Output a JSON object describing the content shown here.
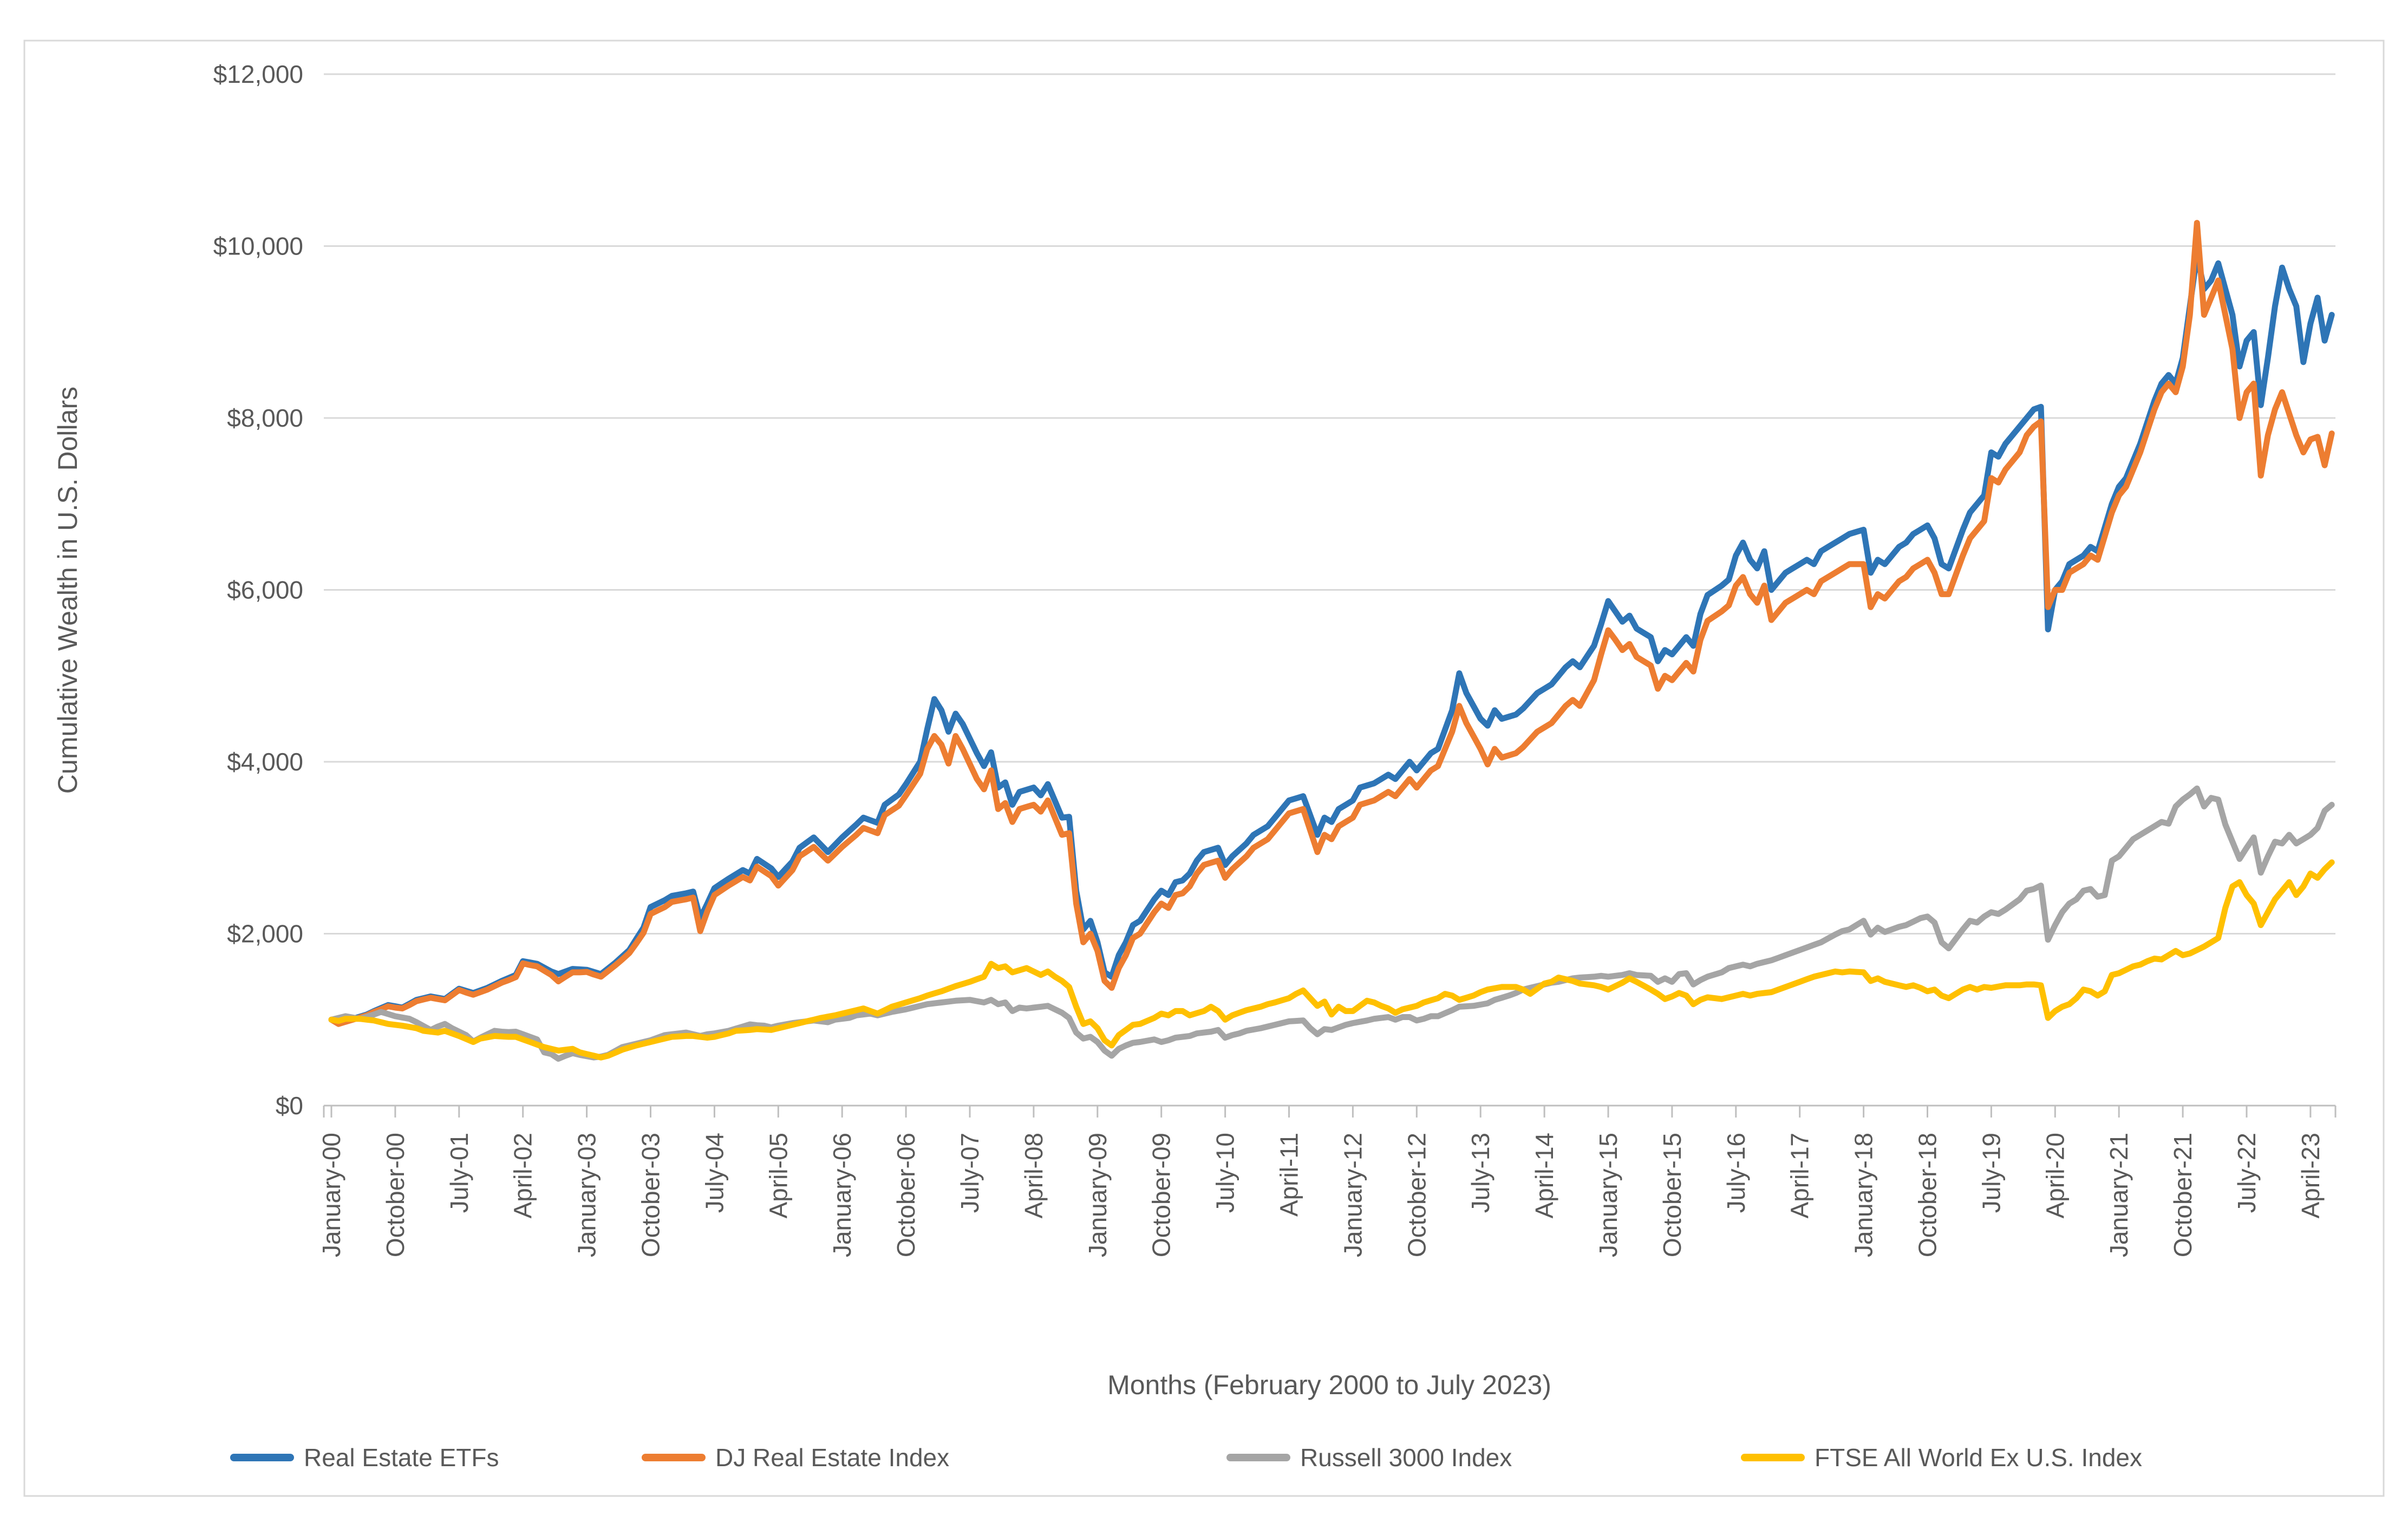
{
  "chart_data": {
    "type": "line",
    "title": "",
    "xlabel": "Months (February 2000 to July 2023)",
    "ylabel": "Cumulative Wealth in U.S. Dollars",
    "ylim": [
      0,
      12000
    ],
    "grid": "horizontal",
    "legend_position": "bottom",
    "y_tick_labels": [
      "$0",
      "$2,000",
      "$4,000",
      "$6,000",
      "$8,000",
      "$10,000",
      "$12,000"
    ],
    "y_tick_values": [
      0,
      2000,
      4000,
      6000,
      8000,
      10000,
      12000
    ],
    "x_tick_interval_months": 9,
    "x_tick_labels": [
      "January-00",
      "October-00",
      "July-01",
      "April-02",
      "January-03",
      "October-03",
      "July-04",
      "April-05",
      "January-06",
      "October-06",
      "July-07",
      "April-08",
      "January-09",
      "October-09",
      "July-10",
      "April-11",
      "January-12",
      "October-12",
      "July-13",
      "April-14",
      "January-15",
      "October-15",
      "July-16",
      "April-17",
      "January-18",
      "October-18",
      "July-19",
      "April-20",
      "January-21",
      "October-21",
      "July-22",
      "April-23"
    ],
    "x_start": "January-2000",
    "x_end": "July-2023",
    "series": [
      {
        "name": "Real Estate ETFs",
        "color": "#2E75B6",
        "values": [
          1000,
          955,
          985,
          1010,
          1035,
          1060,
          1100,
          1135,
          1170,
          1155,
          1140,
          1185,
          1230,
          1250,
          1270,
          1255,
          1240,
          1300,
          1360,
          1335,
          1310,
          1340,
          1370,
          1410,
          1450,
          1485,
          1520,
          1680,
          1665,
          1650,
          1605,
          1560,
          1530,
          1560,
          1590,
          1585,
          1580,
          1555,
          1530,
          1595,
          1660,
          1735,
          1810,
          1940,
          2070,
          2310,
          2350,
          2390,
          2440,
          2455,
          2470,
          2490,
          2180,
          2350,
          2530,
          2585,
          2640,
          2690,
          2740,
          2700,
          2870,
          2815,
          2760,
          2660,
          2750,
          2840,
          3000,
          3060,
          3120,
          3035,
          2950,
          3035,
          3120,
          3195,
          3270,
          3350,
          3320,
          3290,
          3500,
          3560,
          3620,
          3740,
          3870,
          4000,
          4380,
          4730,
          4600,
          4350,
          4560,
          4440,
          4270,
          4100,
          3950,
          4110,
          3700,
          3760,
          3500,
          3650,
          3675,
          3700,
          3610,
          3740,
          3545,
          3350,
          3360,
          2500,
          2050,
          2150,
          1900,
          1550,
          1500,
          1750,
          1900,
          2100,
          2150,
          2275,
          2400,
          2500,
          2450,
          2600,
          2620,
          2700,
          2850,
          2950,
          2975,
          3000,
          2800,
          2900,
          2975,
          3050,
          3150,
          3200,
          3250,
          3350,
          3450,
          3550,
          3575,
          3600,
          3375,
          3150,
          3350,
          3300,
          3450,
          3500,
          3550,
          3700,
          3725,
          3750,
          3800,
          3850,
          3800,
          3900,
          4000,
          3900,
          4000,
          4100,
          4150,
          4375,
          4600,
          5030,
          4800,
          4650,
          4500,
          4420,
          4600,
          4500,
          4525,
          4550,
          4620,
          4710,
          4800,
          4850,
          4900,
          5000,
          5100,
          5170,
          5100,
          5225,
          5350,
          5600,
          5870,
          5750,
          5630,
          5700,
          5550,
          5500,
          5450,
          5170,
          5300,
          5250,
          5350,
          5450,
          5350,
          5720,
          5940,
          5995,
          6050,
          6120,
          6400,
          6550,
          6350,
          6250,
          6450,
          6000,
          6100,
          6200,
          6250,
          6300,
          6350,
          6300,
          6450,
          6500,
          6550,
          6600,
          6650,
          6675,
          6700,
          6200,
          6350,
          6300,
          6400,
          6500,
          6550,
          6650,
          6700,
          6750,
          6600,
          6300,
          6250,
          6475,
          6700,
          6900,
          7000,
          7100,
          7600,
          7550,
          7700,
          7800,
          7900,
          8000,
          8100,
          8130,
          5540,
          6000,
          6100,
          6300,
          6350,
          6400,
          6500,
          6450,
          6725,
          7000,
          7200,
          7300,
          7500,
          7700,
          7950,
          8200,
          8400,
          8500,
          8400,
          8700,
          9300,
          9900,
          9500,
          9600,
          9800,
          9500,
          9200,
          8600,
          8900,
          9000,
          8150,
          8700,
          9300,
          9750,
          9500,
          9300,
          8650,
          9100,
          9400,
          8900,
          9200
        ]
      },
      {
        "name": "DJ Real Estate Index",
        "color": "#ED7D31",
        "values": [
          1000,
          950,
          975,
          1000,
          1025,
          1050,
          1090,
          1120,
          1155,
          1140,
          1130,
          1170,
          1215,
          1235,
          1255,
          1240,
          1225,
          1285,
          1345,
          1315,
          1290,
          1320,
          1350,
          1390,
          1430,
          1460,
          1495,
          1655,
          1635,
          1620,
          1570,
          1520,
          1445,
          1500,
          1550,
          1550,
          1555,
          1525,
          1500,
          1565,
          1630,
          1700,
          1775,
          1890,
          2010,
          2230,
          2270,
          2310,
          2370,
          2385,
          2400,
          2420,
          2030,
          2260,
          2450,
          2505,
          2560,
          2610,
          2660,
          2620,
          2780,
          2725,
          2670,
          2560,
          2650,
          2740,
          2900,
          2955,
          3010,
          2930,
          2850,
          2930,
          3010,
          3080,
          3150,
          3230,
          3200,
          3170,
          3380,
          3435,
          3490,
          3610,
          3735,
          3860,
          4150,
          4300,
          4200,
          3980,
          4300,
          4150,
          3975,
          3800,
          3680,
          3900,
          3450,
          3520,
          3300,
          3450,
          3475,
          3500,
          3420,
          3550,
          3350,
          3150,
          3170,
          2350,
          1900,
          2000,
          1800,
          1450,
          1370,
          1600,
          1750,
          1950,
          2000,
          2125,
          2250,
          2350,
          2300,
          2450,
          2470,
          2550,
          2700,
          2800,
          2825,
          2850,
          2650,
          2750,
          2825,
          2900,
          3000,
          3050,
          3100,
          3200,
          3300,
          3400,
          3425,
          3450,
          3200,
          2950,
          3150,
          3100,
          3250,
          3300,
          3350,
          3500,
          3525,
          3550,
          3600,
          3650,
          3600,
          3700,
          3800,
          3700,
          3800,
          3900,
          3950,
          4150,
          4350,
          4650,
          4450,
          4300,
          4150,
          3970,
          4150,
          4050,
          4075,
          4100,
          4170,
          4260,
          4350,
          4400,
          4450,
          4550,
          4650,
          4720,
          4650,
          4800,
          4950,
          5250,
          5530,
          5420,
          5300,
          5370,
          5220,
          5170,
          5120,
          4850,
          5000,
          4950,
          5050,
          5150,
          5050,
          5420,
          5640,
          5695,
          5750,
          5820,
          6050,
          6150,
          5950,
          5850,
          6050,
          5650,
          5750,
          5850,
          5900,
          5950,
          6000,
          5950,
          6100,
          6150,
          6200,
          6250,
          6300,
          6300,
          6300,
          5800,
          5950,
          5900,
          6000,
          6100,
          6150,
          6250,
          6300,
          6350,
          6200,
          5950,
          5950,
          6175,
          6400,
          6600,
          6700,
          6800,
          7300,
          7250,
          7400,
          7500,
          7600,
          7800,
          7900,
          7960,
          5800,
          6000,
          6000,
          6200,
          6250,
          6300,
          6400,
          6350,
          6625,
          6900,
          7100,
          7200,
          7400,
          7600,
          7850,
          8100,
          8300,
          8400,
          8300,
          8600,
          9200,
          10270,
          9200,
          9400,
          9600,
          9200,
          8800,
          8000,
          8300,
          8400,
          7330,
          7800,
          8100,
          8300,
          8050,
          7800,
          7600,
          7750,
          7780,
          7450,
          7820
        ]
      },
      {
        "name": "Russell 3000 Index",
        "color": "#A5A5A5",
        "values": [
          1000,
          1020,
          1040,
          1025,
          1010,
          1035,
          1060,
          1090,
          1065,
          1040,
          1025,
          1010,
          970,
          925,
          880,
          920,
          950,
          900,
          860,
          820,
          745,
          790,
          830,
          870,
          860,
          855,
          860,
          830,
          800,
          770,
          620,
          600,
          545,
          580,
          610,
          590,
          575,
          560,
          570,
          590,
          635,
          680,
          700,
          720,
          740,
          760,
          790,
          820,
          830,
          840,
          850,
          830,
          810,
          830,
          840,
          855,
          870,
          895,
          920,
          945,
          935,
          930,
          910,
          930,
          945,
          960,
          970,
          980,
          990,
          980,
          970,
          1000,
          1010,
          1020,
          1050,
          1060,
          1070,
          1050,
          1070,
          1090,
          1105,
          1120,
          1140,
          1160,
          1180,
          1190,
          1200,
          1210,
          1220,
          1225,
          1230,
          1215,
          1200,
          1230,
          1180,
          1200,
          1100,
          1140,
          1130,
          1140,
          1150,
          1160,
          1120,
          1080,
          1020,
          850,
          780,
          800,
          740,
          640,
          580,
          660,
          700,
          730,
          740,
          755,
          770,
          740,
          760,
          790,
          800,
          810,
          840,
          850,
          860,
          880,
          790,
          820,
          840,
          870,
          885,
          900,
          920,
          940,
          960,
          980,
          985,
          990,
          900,
          830,
          890,
          880,
          910,
          940,
          960,
          975,
          990,
          1010,
          1020,
          1030,
          1000,
          1030,
          1030,
          990,
          1010,
          1040,
          1040,
          1075,
          1110,
          1150,
          1155,
          1160,
          1175,
          1190,
          1230,
          1255,
          1280,
          1310,
          1350,
          1370,
          1390,
          1410,
          1430,
          1440,
          1460,
          1480,
          1490,
          1495,
          1500,
          1510,
          1500,
          1510,
          1520,
          1540,
          1520,
          1515,
          1510,
          1440,
          1480,
          1440,
          1530,
          1540,
          1410,
          1460,
          1500,
          1525,
          1550,
          1600,
          1620,
          1640,
          1620,
          1650,
          1670,
          1690,
          1720,
          1750,
          1780,
          1810,
          1840,
          1870,
          1900,
          1945,
          1990,
          2030,
          2050,
          2100,
          2150,
          1990,
          2070,
          2020,
          2050,
          2080,
          2100,
          2140,
          2180,
          2200,
          2130,
          1900,
          1830,
          1940,
          2050,
          2150,
          2130,
          2200,
          2250,
          2230,
          2280,
          2340,
          2400,
          2500,
          2520,
          2560,
          1930,
          2100,
          2250,
          2350,
          2400,
          2500,
          2520,
          2430,
          2450,
          2850,
          2900,
          3000,
          3100,
          3150,
          3200,
          3250,
          3300,
          3280,
          3480,
          3560,
          3620,
          3690,
          3480,
          3580,
          3560,
          3270,
          3070,
          2870,
          3000,
          3120,
          2710,
          2900,
          3070,
          3050,
          3150,
          3050,
          3100,
          3150,
          3230,
          3430,
          3500
        ]
      },
      {
        "name": "FTSE All World Ex U.S. Index",
        "color": "#FFC000",
        "values": [
          1000,
          985,
          1010,
          1010,
          1010,
          1000,
          990,
          970,
          950,
          940,
          930,
          915,
          900,
          870,
          860,
          850,
          870,
          840,
          810,
          775,
          740,
          780,
          795,
          810,
          805,
          800,
          800,
          770,
          740,
          710,
          680,
          660,
          640,
          650,
          660,
          620,
          600,
          580,
          560,
          580,
          615,
          650,
          675,
          700,
          720,
          740,
          760,
          780,
          800,
          805,
          810,
          810,
          800,
          790,
          800,
          820,
          840,
          870,
          875,
          880,
          890,
          885,
          880,
          900,
          920,
          940,
          960,
          980,
          1000,
          1020,
          1035,
          1050,
          1070,
          1090,
          1110,
          1130,
          1100,
          1070,
          1110,
          1150,
          1175,
          1200,
          1225,
          1250,
          1280,
          1305,
          1330,
          1360,
          1390,
          1415,
          1440,
          1470,
          1500,
          1650,
          1600,
          1620,
          1550,
          1575,
          1600,
          1560,
          1520,
          1560,
          1500,
          1450,
          1380,
          1150,
          950,
          980,
          900,
          760,
          700,
          820,
          880,
          940,
          950,
          985,
          1020,
          1070,
          1050,
          1100,
          1100,
          1050,
          1075,
          1100,
          1150,
          1100,
          1000,
          1050,
          1080,
          1110,
          1130,
          1150,
          1180,
          1200,
          1225,
          1250,
          1300,
          1340,
          1250,
          1160,
          1210,
          1060,
          1150,
          1100,
          1100,
          1160,
          1220,
          1200,
          1160,
          1130,
          1080,
          1120,
          1140,
          1160,
          1200,
          1225,
          1250,
          1300,
          1280,
          1230,
          1255,
          1280,
          1320,
          1350,
          1365,
          1380,
          1380,
          1380,
          1350,
          1300,
          1360,
          1420,
          1440,
          1490,
          1470,
          1450,
          1420,
          1410,
          1400,
          1380,
          1350,
          1390,
          1430,
          1480,
          1440,
          1395,
          1350,
          1300,
          1240,
          1270,
          1310,
          1280,
          1180,
          1230,
          1260,
          1250,
          1240,
          1260,
          1280,
          1300,
          1280,
          1300,
          1310,
          1320,
          1350,
          1380,
          1410,
          1440,
          1470,
          1500,
          1520,
          1540,
          1560,
          1550,
          1560,
          1555,
          1550,
          1450,
          1480,
          1440,
          1420,
          1400,
          1380,
          1400,
          1370,
          1330,
          1350,
          1280,
          1250,
          1300,
          1350,
          1380,
          1350,
          1380,
          1370,
          1385,
          1400,
          1400,
          1400,
          1410,
          1410,
          1400,
          1020,
          1100,
          1150,
          1180,
          1250,
          1350,
          1330,
          1280,
          1330,
          1520,
          1540,
          1580,
          1620,
          1640,
          1680,
          1710,
          1700,
          1750,
          1800,
          1750,
          1770,
          1810,
          1850,
          1900,
          1950,
          2300,
          2550,
          2600,
          2450,
          2350,
          2100,
          2250,
          2400,
          2500,
          2600,
          2450,
          2550,
          2700,
          2650,
          2750,
          2830
        ]
      }
    ],
    "colors": {
      "grid": "#D9D9D9",
      "axis": "#BFBFBF",
      "border": "#D9D9D9",
      "text": "#595959"
    }
  }
}
